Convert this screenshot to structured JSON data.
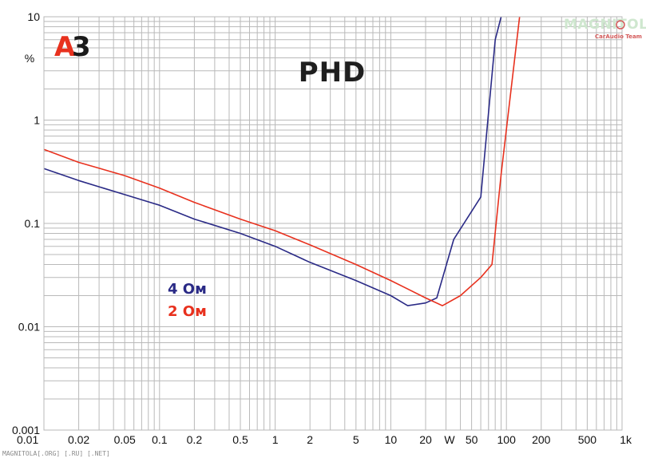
{
  "chart_data": {
    "type": "line",
    "title": "PHD",
    "xlabel": "",
    "ylabel": "%",
    "xunit_label": "W",
    "xscale": "log",
    "yscale": "log",
    "xlim": [
      0.01,
      1000
    ],
    "ylim": [
      0.001,
      10
    ],
    "grid": true,
    "x_tick_labels": [
      "0.01",
      "0.02",
      "0.05",
      "0.1",
      "0.2",
      "0.5",
      "1",
      "2",
      "5",
      "10",
      "20",
      "50",
      "100",
      "200",
      "500",
      "1k"
    ],
    "y_tick_labels": [
      "0.001",
      "0.01",
      "0.1",
      "1",
      "10"
    ],
    "legend_position": "left-center",
    "series": [
      {
        "name": "4 Ом",
        "color": "#2a2a86",
        "x": [
          0.01,
          0.02,
          0.05,
          0.1,
          0.2,
          0.5,
          1,
          2,
          5,
          10,
          14,
          20,
          25,
          35,
          60,
          80,
          90
        ],
        "y": [
          0.34,
          0.26,
          0.19,
          0.15,
          0.11,
          0.08,
          0.06,
          0.042,
          0.028,
          0.02,
          0.016,
          0.017,
          0.019,
          0.07,
          0.18,
          6,
          10
        ]
      },
      {
        "name": "2 Ом",
        "color": "#e8311e",
        "x": [
          0.01,
          0.02,
          0.05,
          0.1,
          0.2,
          0.5,
          1,
          2,
          5,
          10,
          20,
          28,
          40,
          60,
          75,
          90,
          130
        ],
        "y": [
          0.52,
          0.39,
          0.29,
          0.22,
          0.16,
          0.11,
          0.085,
          0.062,
          0.04,
          0.028,
          0.019,
          0.016,
          0.02,
          0.03,
          0.04,
          0.3,
          10
        ]
      }
    ]
  },
  "branding": {
    "logo": "A3",
    "watermark_main": "MAGNITOLA",
    "watermark_sub": "CarAudio Team",
    "footer": "MAGNITOLA[.ORG] [.RU] [.NET]"
  },
  "colors": {
    "logo_red": "#e8311e",
    "logo_dark": "#1a1a1a",
    "series_4ohm": "#2a2a86",
    "series_2ohm": "#e8311e"
  }
}
